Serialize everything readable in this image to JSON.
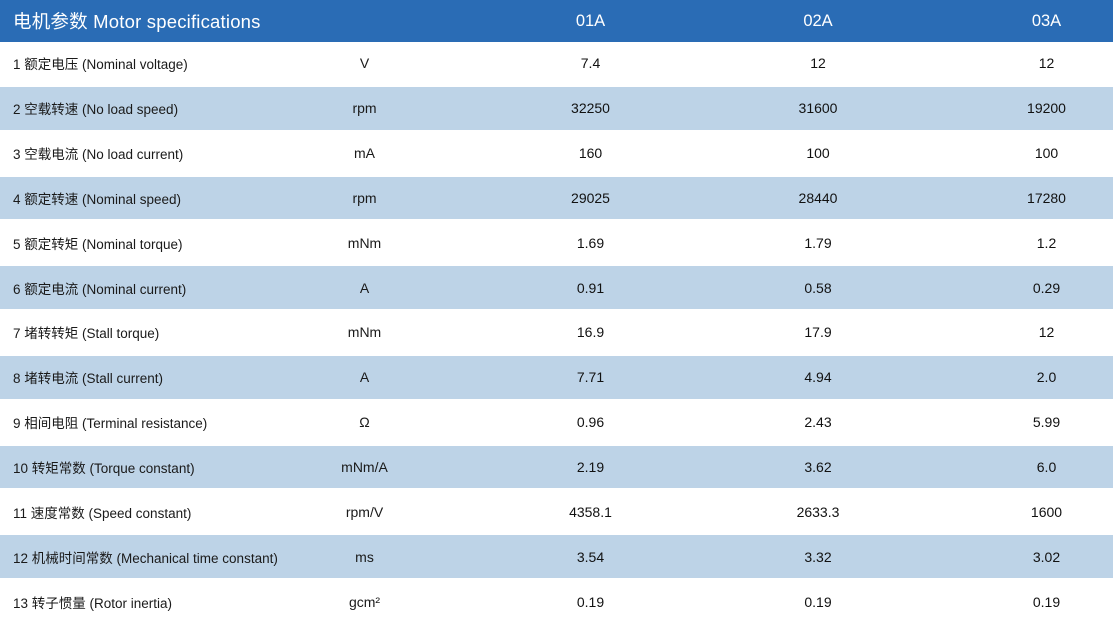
{
  "header": {
    "title": "电机参数 Motor specifications",
    "columns": [
      "01A",
      "02A",
      "03A"
    ]
  },
  "colors": {
    "header_bg": "#2A6CB5",
    "stripe_bg": "#BDD3E7"
  },
  "rows": [
    {
      "label": "1 额定电压 (Nominal voltage)",
      "unit": "V",
      "values": [
        "7.4",
        "12",
        "12"
      ]
    },
    {
      "label": "2 空载转速 (No load speed)",
      "unit": "rpm",
      "values": [
        "32250",
        "31600",
        "19200"
      ]
    },
    {
      "label": "3 空载电流 (No load current)",
      "unit": "mA",
      "values": [
        "160",
        "100",
        "100"
      ]
    },
    {
      "label": "4 额定转速 (Nominal speed)",
      "unit": "rpm",
      "values": [
        "29025",
        "28440",
        "17280"
      ]
    },
    {
      "label": "5 额定转矩 (Nominal torque)",
      "unit": "mNm",
      "values": [
        "1.69",
        "1.79",
        "1.2"
      ]
    },
    {
      "label": "6 额定电流 (Nominal current)",
      "unit": "A",
      "values": [
        "0.91",
        "0.58",
        "0.29"
      ]
    },
    {
      "label": "7 堵转转矩 (Stall torque)",
      "unit": "mNm",
      "values": [
        "16.9",
        "17.9",
        "12"
      ]
    },
    {
      "label": "8 堵转电流 (Stall current)",
      "unit": "A",
      "values": [
        "7.71",
        "4.94",
        "2.0"
      ]
    },
    {
      "label": "9 相间电阻 (Terminal resistance)",
      "unit": "Ω",
      "values": [
        "0.96",
        "2.43",
        "5.99"
      ]
    },
    {
      "label": "10 转矩常数 (Torque constant)",
      "unit": "mNm/A",
      "values": [
        "2.19",
        "3.62",
        "6.0"
      ]
    },
    {
      "label": "11 速度常数 (Speed constant)",
      "unit": "rpm/V",
      "values": [
        "4358.1",
        "2633.3",
        "1600"
      ]
    },
    {
      "label": "12 机械时间常数 (Mechanical time constant)",
      "unit": "ms",
      "values": [
        "3.54",
        "3.32",
        "3.02"
      ]
    },
    {
      "label": "13 转子惯量 (Rotor inertia)",
      "unit": "gcm²",
      "values": [
        "0.19",
        "0.19",
        "0.19"
      ]
    }
  ]
}
